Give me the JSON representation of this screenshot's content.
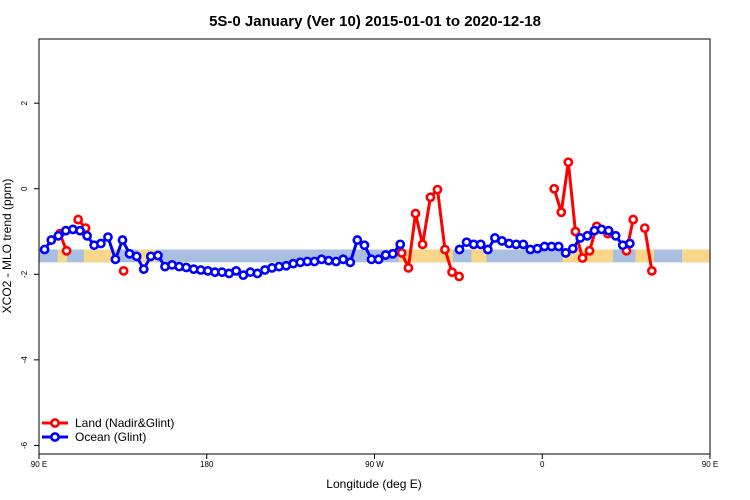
{
  "chart_data": {
    "type": "line",
    "title": "5S-0 January (Ver 10)   2015-01-01 to 2020-12-18",
    "xlabel": "Longitude (deg E)",
    "ylabel": "XCO2 - MLO trend (ppm)",
    "xlim": [
      90,
      450
    ],
    "ylim": [
      -6.2,
      3.5
    ],
    "x_ticks": [
      {
        "value": 90,
        "label": "90 E"
      },
      {
        "value": 180,
        "label": "180"
      },
      {
        "value": 270,
        "label": "90 W"
      },
      {
        "value": 360,
        "label": "0"
      },
      {
        "value": 450,
        "label": "90 E"
      },
      {
        "value": 540,
        "label": "180"
      }
    ],
    "y_ticks": [
      {
        "value": -6,
        "label": "-6"
      },
      {
        "value": -4,
        "label": "-4"
      },
      {
        "value": -2,
        "label": "-2"
      },
      {
        "value": 0,
        "label": "0"
      },
      {
        "value": 2,
        "label": "2"
      }
    ],
    "band": {
      "ymin": -1.72,
      "ymax": -1.42,
      "ocean_color": "#a9bfe1",
      "land_color": "#f8d68a"
    },
    "land_segments": [
      [
        100,
        105
      ],
      [
        114,
        132
      ],
      [
        143,
        153
      ],
      [
        283,
        312
      ],
      [
        322,
        330
      ],
      [
        371,
        398
      ],
      [
        410,
        420
      ],
      [
        435,
        450
      ]
    ],
    "series": [
      {
        "name": "Land (Nadir&Glint)",
        "color": "#ff0000",
        "x": [
          101.2,
          104.8,
          111,
          115,
          135.4,
          284.6,
          288.2,
          292,
          295.8,
          300,
          303.8,
          307.8,
          311.6,
          315.4,
          366.4,
          370.2,
          374,
          377.8,
          381.6,
          385.4,
          389.2,
          395.2,
          405.2,
          408.8,
          415,
          418.8,
          424.8
        ],
        "y": [
          -1.05,
          -1.45,
          -0.72,
          -0.92,
          -1.92,
          -1.5,
          -1.85,
          -0.58,
          -1.3,
          -0.2,
          -0.02,
          -1.42,
          -1.95,
          -2.05,
          0.0,
          -0.55,
          0.62,
          -1.0,
          -1.62,
          -1.45,
          -0.88,
          -1.05,
          -1.45,
          -0.72,
          -0.92,
          -1.92,
          null
        ]
      },
      {
        "name": "Ocean (Glint)",
        "color": "#0000ff",
        "x": [
          93,
          96.6,
          100.4,
          104.4,
          108.2,
          112,
          115.8,
          119.6,
          123.2,
          127,
          131,
          134.8,
          138.6,
          142.4,
          146.2,
          150,
          153.8,
          157.6,
          161.4,
          165.2,
          169,
          173,
          176.8,
          180.6,
          184.4,
          188.2,
          192,
          195.8,
          199.6,
          203.4,
          207.2,
          211.2,
          215,
          218.8,
          222.6,
          226.4,
          230.2,
          234,
          237.8,
          241.6,
          245.4,
          249.4,
          253.2,
          257,
          260.8,
          264.6,
          268.4,
          272.2,
          276,
          279.8,
          283.8,
          315.6,
          319.4,
          323.2,
          327,
          330.8,
          334.6,
          338.4,
          342.2,
          346,
          349.8,
          353.6,
          357.4,
          361.2,
          365,
          368.8,
          372.6,
          376.4,
          380.4,
          384.2,
          388,
          391.8,
          395.6,
          399.4,
          403.2,
          407
        ],
        "y": [
          -1.42,
          -1.2,
          -1.1,
          -0.98,
          -0.95,
          -0.98,
          -1.1,
          -1.32,
          -1.28,
          -1.13,
          -1.65,
          -1.2,
          -1.52,
          -1.58,
          -1.88,
          -1.58,
          -1.56,
          -1.82,
          -1.78,
          -1.82,
          -1.84,
          -1.88,
          -1.9,
          -1.92,
          -1.95,
          -1.95,
          -1.98,
          -1.92,
          -2.02,
          -1.95,
          -1.98,
          -1.9,
          -1.85,
          -1.82,
          -1.8,
          -1.75,
          -1.72,
          -1.7,
          -1.7,
          -1.65,
          -1.68,
          -1.7,
          -1.65,
          -1.72,
          -1.2,
          -1.32,
          -1.65,
          -1.65,
          -1.55,
          -1.52,
          -1.3,
          -1.42,
          -1.25,
          -1.3,
          -1.3,
          -1.42,
          -1.15,
          -1.22,
          -1.28,
          -1.3,
          -1.3,
          -1.42,
          -1.4,
          -1.35,
          -1.35,
          -1.35,
          -1.5,
          -1.4,
          -1.15,
          -1.1,
          -0.98,
          -0.95,
          -0.98,
          -1.1,
          -1.32,
          -1.28
        ]
      }
    ],
    "legend": {
      "position": "bottom-left",
      "items": [
        "Land (Nadir&Glint)",
        "Ocean (Glint)"
      ]
    }
  }
}
